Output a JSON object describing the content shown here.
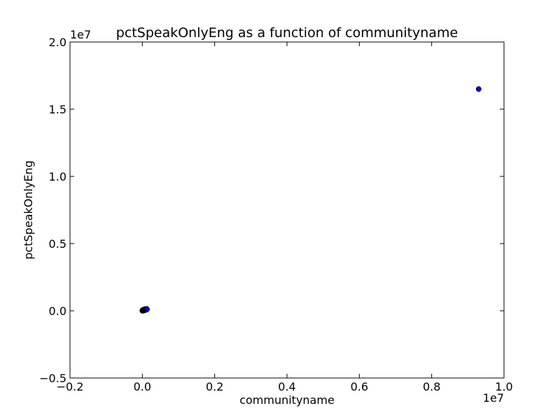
{
  "chart_data": {
    "type": "scatter",
    "title": "pctSpeakOnlyEng as a function of communityname",
    "xlabel": "communityname",
    "ylabel": "pctSpeakOnlyEng",
    "xlim": [
      -2000000,
      10000000
    ],
    "ylim": [
      -5000000,
      20000000
    ],
    "x_offset_label": "1e7",
    "y_offset_label": "1e7",
    "x_ticks": [
      {
        "value": -2000000,
        "label": "−0.2"
      },
      {
        "value": 0,
        "label": "0.0"
      },
      {
        "value": 2000000,
        "label": "0.2"
      },
      {
        "value": 4000000,
        "label": "0.4"
      },
      {
        "value": 6000000,
        "label": "0.6"
      },
      {
        "value": 8000000,
        "label": "0.8"
      },
      {
        "value": 10000000,
        "label": "1.0"
      }
    ],
    "y_ticks": [
      {
        "value": -5000000,
        "label": "−0.5"
      },
      {
        "value": 0,
        "label": "0.0"
      },
      {
        "value": 5000000,
        "label": "0.5"
      },
      {
        "value": 10000000,
        "label": "1.0"
      },
      {
        "value": 15000000,
        "label": "1.5"
      },
      {
        "value": 20000000,
        "label": "2.0"
      }
    ],
    "grid": false,
    "marker_color": "#0000ff",
    "points": [
      {
        "x": 9300000,
        "y": 16500000
      },
      {
        "x": 0,
        "y": 0
      },
      {
        "x": 10000,
        "y": 15000
      },
      {
        "x": 20000,
        "y": 25000
      },
      {
        "x": 30000,
        "y": 40000
      },
      {
        "x": 40000,
        "y": 60000
      },
      {
        "x": 50000,
        "y": 70000
      },
      {
        "x": 60000,
        "y": 90000
      },
      {
        "x": 70000,
        "y": 110000
      },
      {
        "x": 80000,
        "y": 120000
      },
      {
        "x": 90000,
        "y": 100000
      },
      {
        "x": 100000,
        "y": 130000
      },
      {
        "x": 110000,
        "y": 120000
      },
      {
        "x": 5000,
        "y": 40000
      },
      {
        "x": 15000,
        "y": 70000
      },
      {
        "x": 25000,
        "y": 10000
      },
      {
        "x": 35000,
        "y": 80000
      },
      {
        "x": 45000,
        "y": 20000
      },
      {
        "x": 55000,
        "y": 110000
      },
      {
        "x": 65000,
        "y": 50000
      },
      {
        "x": 75000,
        "y": 80000
      },
      {
        "x": 85000,
        "y": 140000
      },
      {
        "x": 95000,
        "y": 60000
      },
      {
        "x": 105000,
        "y": 90000
      },
      {
        "x": 115000,
        "y": 100000
      },
      {
        "x": 120000,
        "y": 140000
      },
      {
        "x": 130000,
        "y": 110000
      }
    ]
  }
}
